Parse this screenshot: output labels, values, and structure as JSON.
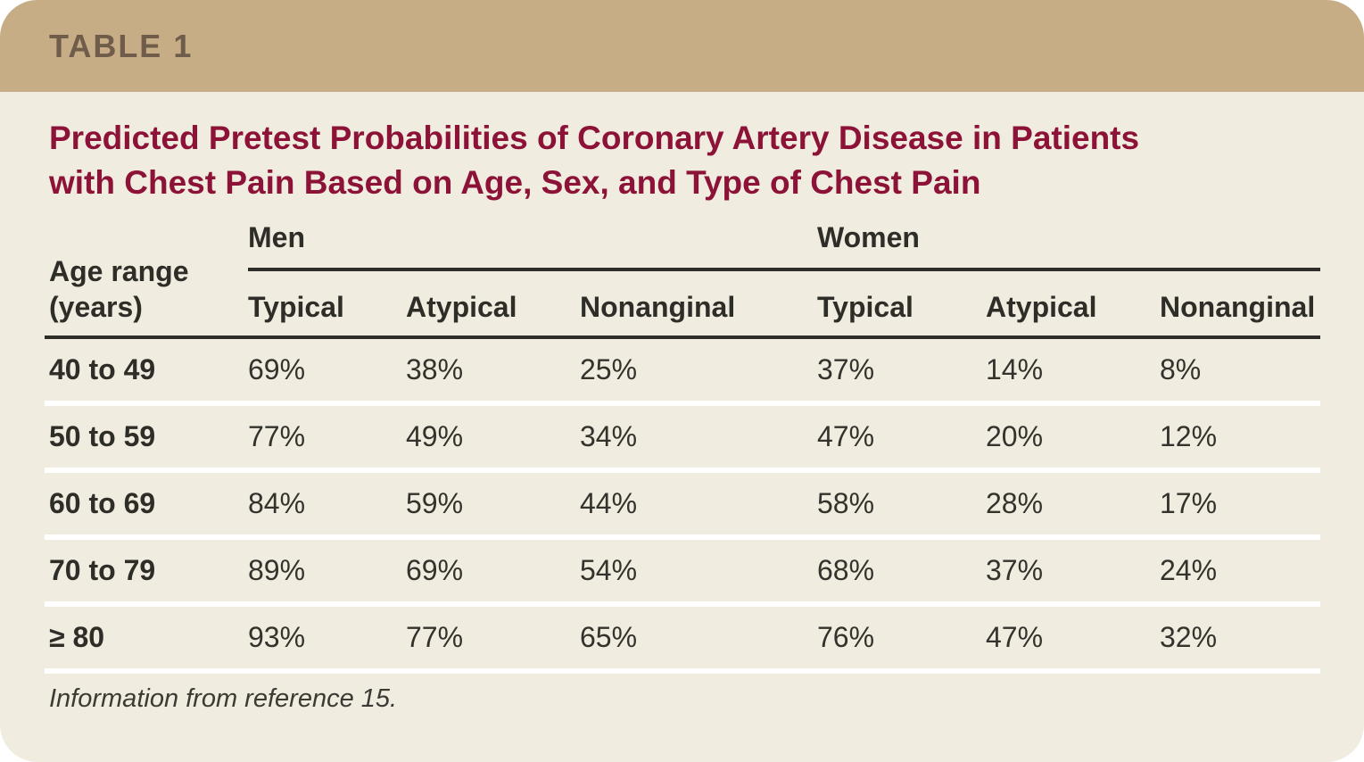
{
  "banner": {
    "label": "TABLE 1"
  },
  "title": {
    "line1": "Predicted Pretest Probabilities of Coronary Artery Disease in Patients",
    "line2": "with Chest Pain Based on Age, Sex, and Type of Chest Pain"
  },
  "table": {
    "age_header": {
      "line1": "Age range",
      "line2": "(years)"
    },
    "groups": [
      {
        "label": "Men"
      },
      {
        "label": "Women"
      }
    ],
    "subheaders": [
      "Typical",
      "Atypical",
      "Nonanginal",
      "Typical",
      "Atypical",
      "Nonanginal"
    ],
    "rows": [
      {
        "age": "40 to 49",
        "values": [
          "69%",
          "38%",
          "25%",
          "37%",
          "14%",
          "8%"
        ]
      },
      {
        "age": "50 to 59",
        "values": [
          "77%",
          "49%",
          "34%",
          "47%",
          "20%",
          "12%"
        ]
      },
      {
        "age": "60 to 69",
        "values": [
          "84%",
          "59%",
          "44%",
          "58%",
          "28%",
          "17%"
        ]
      },
      {
        "age": "70 to 79",
        "values": [
          "89%",
          "69%",
          "54%",
          "68%",
          "37%",
          "24%"
        ]
      },
      {
        "age": "≥ 80",
        "values": [
          "93%",
          "77%",
          "65%",
          "76%",
          "47%",
          "32%"
        ]
      }
    ]
  },
  "footnote": "Information from reference 15.",
  "colors": {
    "band": "#C6AD85",
    "band_text": "#6F5C4B",
    "background": "#F1ECE0",
    "title": "#8C1237",
    "text": "#2E2D28",
    "row_separator": "#FFFFFF"
  }
}
